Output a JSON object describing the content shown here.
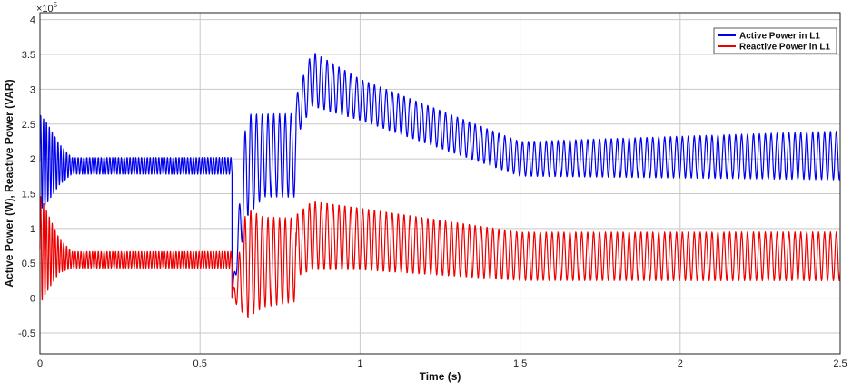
{
  "chart_data": {
    "type": "line",
    "title": "",
    "xlabel": "Time (s)",
    "ylabel": "Active Power (W), Reactive Power (VAR)",
    "y_exponent_label": "×10",
    "y_exponent_power": "5",
    "xlim": [
      0,
      2.5
    ],
    "ylim": [
      -0.8,
      4.1
    ],
    "x_ticks": [
      "0",
      "0.5",
      "1",
      "1.5",
      "2",
      "2.5"
    ],
    "y_ticks": [
      "-0.5",
      "0",
      "0.5",
      "1",
      "1.5",
      "2",
      "2.5",
      "3",
      "3.5",
      "4"
    ],
    "grid": true,
    "legend_position": "top-right",
    "series": [
      {
        "name": "Active Power in L1",
        "color": "#0000ee",
        "segments": [
          {
            "x0": 0.0,
            "x1": 0.6,
            "center": [
              [
                0.0,
                1.95
              ],
              [
                0.1,
                1.9
              ],
              [
                0.6,
                1.9
              ]
            ],
            "amplitude": [
              [
                0.0,
                0.7
              ],
              [
                0.02,
                0.6
              ],
              [
                0.06,
                0.3
              ],
              [
                0.1,
                0.12
              ],
              [
                0.6,
                0.12
              ]
            ],
            "period": 0.009
          },
          {
            "x0": 0.6,
            "x1": 0.8,
            "center": [
              [
                0.6,
                0.0
              ],
              [
                0.645,
                1.9
              ],
              [
                0.7,
                2.05
              ],
              [
                0.8,
                2.05
              ]
            ],
            "amplitude": [
              [
                0.6,
                0.0
              ],
              [
                0.645,
                0.75
              ],
              [
                0.7,
                0.6
              ],
              [
                0.8,
                0.6
              ]
            ],
            "period": 0.018
          },
          {
            "x0": 0.8,
            "x1": 2.5,
            "center": [
              [
                0.8,
                2.6
              ],
              [
                0.85,
                3.15
              ],
              [
                1.0,
                2.85
              ],
              [
                1.5,
                2.0
              ],
              [
                2.5,
                2.05
              ]
            ],
            "amplitude": [
              [
                0.8,
                0.3
              ],
              [
                0.85,
                0.4
              ],
              [
                1.0,
                0.3
              ],
              [
                1.5,
                0.25
              ],
              [
                2.5,
                0.35
              ]
            ],
            "period": 0.0185
          }
        ]
      },
      {
        "name": "Reactive Power in L1",
        "color": "#ee0000",
        "segments": [
          {
            "x0": 0.0,
            "x1": 0.6,
            "center": [
              [
                0.0,
                0.7
              ],
              [
                0.1,
                0.55
              ],
              [
                0.6,
                0.55
              ]
            ],
            "amplitude": [
              [
                0.0,
                0.8
              ],
              [
                0.02,
                0.6
              ],
              [
                0.06,
                0.25
              ],
              [
                0.1,
                0.12
              ],
              [
                0.6,
                0.12
              ]
            ],
            "period": 0.009
          },
          {
            "x0": 0.6,
            "x1": 0.8,
            "center": [
              [
                0.6,
                0.0
              ],
              [
                0.645,
                0.5
              ],
              [
                0.8,
                0.55
              ]
            ],
            "amplitude": [
              [
                0.6,
                0.0
              ],
              [
                0.645,
                0.8
              ],
              [
                0.7,
                0.65
              ],
              [
                0.8,
                0.6
              ]
            ],
            "period": 0.018
          },
          {
            "x0": 0.8,
            "x1": 2.5,
            "center": [
              [
                0.8,
                0.75
              ],
              [
                0.85,
                0.9
              ],
              [
                1.0,
                0.85
              ],
              [
                1.5,
                0.6
              ],
              [
                2.5,
                0.6
              ]
            ],
            "amplitude": [
              [
                0.8,
                0.45
              ],
              [
                0.85,
                0.5
              ],
              [
                1.0,
                0.45
              ],
              [
                1.5,
                0.35
              ],
              [
                2.5,
                0.35
              ]
            ],
            "period": 0.0185
          }
        ]
      }
    ]
  }
}
